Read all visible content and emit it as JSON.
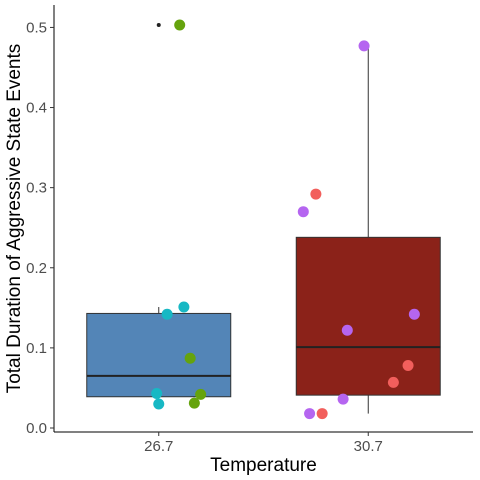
{
  "chart_data": {
    "type": "box",
    "title": "",
    "xlabel": "Temperature",
    "ylabel": "Total Duration of Aggressive State Events",
    "ylim": [
      -0.005,
      0.528
    ],
    "yticks": [
      0.0,
      0.1,
      0.2,
      0.3,
      0.4,
      0.5
    ],
    "ytick_labels": [
      "0.0",
      "0.1",
      "0.2",
      "0.3",
      "0.4",
      "0.5"
    ],
    "categories": [
      "26.7",
      "30.7"
    ],
    "grid": false,
    "legend": "none",
    "boxes": [
      {
        "category": "26.7",
        "fill": "#5385b7",
        "q1": 0.039,
        "median": 0.065,
        "q3": 0.143,
        "whisker_low": 0.039,
        "whisker_high": 0.151,
        "outliers": [
          0.503
        ]
      },
      {
        "category": "30.7",
        "fill": "#8b2219",
        "q1": 0.041,
        "median": 0.101,
        "q3": 0.238,
        "whisker_low": 0.018,
        "whisker_high": 0.477,
        "outliers": []
      }
    ],
    "points": [
      {
        "category": "26.7",
        "offset": 0.1,
        "y": 0.503,
        "color": "#65a30d"
      },
      {
        "category": "26.7",
        "offset": 0.12,
        "y": 0.151,
        "color": "#17b8c4"
      },
      {
        "category": "26.7",
        "offset": 0.04,
        "y": 0.142,
        "color": "#17b8c4"
      },
      {
        "category": "26.7",
        "offset": 0.15,
        "y": 0.087,
        "color": "#65a30d"
      },
      {
        "category": "26.7",
        "offset": -0.01,
        "y": 0.043,
        "color": "#17b8c4"
      },
      {
        "category": "26.7",
        "offset": 0.2,
        "y": 0.042,
        "color": "#65a30d"
      },
      {
        "category": "26.7",
        "offset": 0.0,
        "y": 0.03,
        "color": "#17b8c4"
      },
      {
        "category": "26.7",
        "offset": 0.17,
        "y": 0.031,
        "color": "#65a30d"
      },
      {
        "category": "30.7",
        "offset": -0.02,
        "y": 0.477,
        "color": "#b565f0"
      },
      {
        "category": "30.7",
        "offset": -0.25,
        "y": 0.292,
        "color": "#f25f5c"
      },
      {
        "category": "30.7",
        "offset": -0.31,
        "y": 0.27,
        "color": "#b565f0"
      },
      {
        "category": "30.7",
        "offset": 0.22,
        "y": 0.142,
        "color": "#b565f0"
      },
      {
        "category": "30.7",
        "offset": -0.1,
        "y": 0.122,
        "color": "#b565f0"
      },
      {
        "category": "30.7",
        "offset": 0.19,
        "y": 0.078,
        "color": "#f25f5c"
      },
      {
        "category": "30.7",
        "offset": 0.12,
        "y": 0.057,
        "color": "#f25f5c"
      },
      {
        "category": "30.7",
        "offset": -0.12,
        "y": 0.036,
        "color": "#b565f0"
      },
      {
        "category": "30.7",
        "offset": -0.28,
        "y": 0.018,
        "color": "#b565f0"
      },
      {
        "category": "30.7",
        "offset": -0.22,
        "y": 0.018,
        "color": "#f25f5c"
      }
    ]
  }
}
